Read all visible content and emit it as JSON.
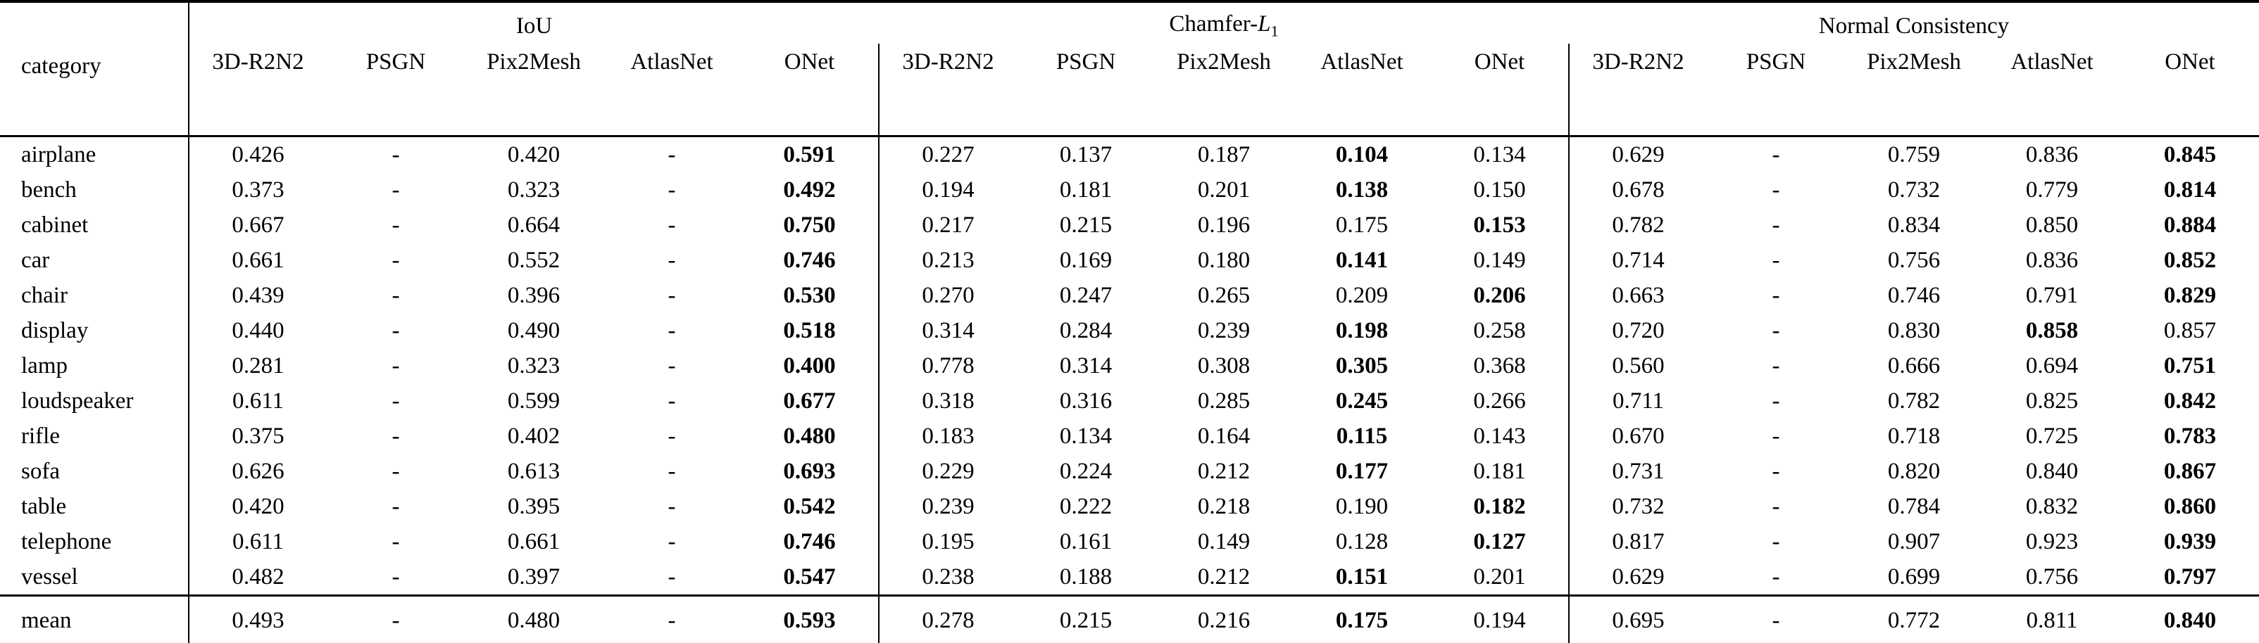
{
  "table": {
    "category_label": "category",
    "text_color": "#000000",
    "background_color": "#ffffff",
    "groups": [
      {
        "name": "IoU",
        "methods": [
          "3D-R2N2",
          "PSGN",
          "Pix2Mesh",
          "AtlasNet",
          "ONet"
        ]
      },
      {
        "name": "Chamfer-",
        "name_italic": "L",
        "name_subscript": "1",
        "methods": [
          "3D-R2N2",
          "PSGN",
          "Pix2Mesh",
          "AtlasNet",
          "ONet"
        ]
      },
      {
        "name": "Normal Consistency",
        "methods": [
          "3D-R2N2",
          "PSGN",
          "Pix2Mesh",
          "AtlasNet",
          "ONet"
        ]
      }
    ],
    "rows": [
      {
        "category": "airplane",
        "values": [
          [
            "0.426",
            "-",
            "0.420",
            "-",
            "0.591"
          ],
          [
            "0.227",
            "0.137",
            "0.187",
            "0.104",
            "0.134"
          ],
          [
            "0.629",
            "-",
            "0.759",
            "0.836",
            "0.845"
          ]
        ],
        "bold": [
          [
            4
          ],
          [
            3
          ],
          [
            4
          ]
        ]
      },
      {
        "category": "bench",
        "values": [
          [
            "0.373",
            "-",
            "0.323",
            "-",
            "0.492"
          ],
          [
            "0.194",
            "0.181",
            "0.201",
            "0.138",
            "0.150"
          ],
          [
            "0.678",
            "-",
            "0.732",
            "0.779",
            "0.814"
          ]
        ],
        "bold": [
          [
            4
          ],
          [
            3
          ],
          [
            4
          ]
        ]
      },
      {
        "category": "cabinet",
        "values": [
          [
            "0.667",
            "-",
            "0.664",
            "-",
            "0.750"
          ],
          [
            "0.217",
            "0.215",
            "0.196",
            "0.175",
            "0.153"
          ],
          [
            "0.782",
            "-",
            "0.834",
            "0.850",
            "0.884"
          ]
        ],
        "bold": [
          [
            4
          ],
          [
            4
          ],
          [
            4
          ]
        ]
      },
      {
        "category": "car",
        "values": [
          [
            "0.661",
            "-",
            "0.552",
            "-",
            "0.746"
          ],
          [
            "0.213",
            "0.169",
            "0.180",
            "0.141",
            "0.149"
          ],
          [
            "0.714",
            "-",
            "0.756",
            "0.836",
            "0.852"
          ]
        ],
        "bold": [
          [
            4
          ],
          [
            3
          ],
          [
            4
          ]
        ]
      },
      {
        "category": "chair",
        "values": [
          [
            "0.439",
            "-",
            "0.396",
            "-",
            "0.530"
          ],
          [
            "0.270",
            "0.247",
            "0.265",
            "0.209",
            "0.206"
          ],
          [
            "0.663",
            "-",
            "0.746",
            "0.791",
            "0.829"
          ]
        ],
        "bold": [
          [
            4
          ],
          [
            4
          ],
          [
            4
          ]
        ]
      },
      {
        "category": "display",
        "values": [
          [
            "0.440",
            "-",
            "0.490",
            "-",
            "0.518"
          ],
          [
            "0.314",
            "0.284",
            "0.239",
            "0.198",
            "0.258"
          ],
          [
            "0.720",
            "-",
            "0.830",
            "0.858",
            "0.857"
          ]
        ],
        "bold": [
          [
            4
          ],
          [
            3
          ],
          [
            3
          ]
        ]
      },
      {
        "category": "lamp",
        "values": [
          [
            "0.281",
            "-",
            "0.323",
            "-",
            "0.400"
          ],
          [
            "0.778",
            "0.314",
            "0.308",
            "0.305",
            "0.368"
          ],
          [
            "0.560",
            "-",
            "0.666",
            "0.694",
            "0.751"
          ]
        ],
        "bold": [
          [
            4
          ],
          [
            3
          ],
          [
            4
          ]
        ]
      },
      {
        "category": "loudspeaker",
        "values": [
          [
            "0.611",
            "-",
            "0.599",
            "-",
            "0.677"
          ],
          [
            "0.318",
            "0.316",
            "0.285",
            "0.245",
            "0.266"
          ],
          [
            "0.711",
            "-",
            "0.782",
            "0.825",
            "0.842"
          ]
        ],
        "bold": [
          [
            4
          ],
          [
            3
          ],
          [
            4
          ]
        ]
      },
      {
        "category": "rifle",
        "values": [
          [
            "0.375",
            "-",
            "0.402",
            "-",
            "0.480"
          ],
          [
            "0.183",
            "0.134",
            "0.164",
            "0.115",
            "0.143"
          ],
          [
            "0.670",
            "-",
            "0.718",
            "0.725",
            "0.783"
          ]
        ],
        "bold": [
          [
            4
          ],
          [
            3
          ],
          [
            4
          ]
        ]
      },
      {
        "category": "sofa",
        "values": [
          [
            "0.626",
            "-",
            "0.613",
            "-",
            "0.693"
          ],
          [
            "0.229",
            "0.224",
            "0.212",
            "0.177",
            "0.181"
          ],
          [
            "0.731",
            "-",
            "0.820",
            "0.840",
            "0.867"
          ]
        ],
        "bold": [
          [
            4
          ],
          [
            3
          ],
          [
            4
          ]
        ]
      },
      {
        "category": "table",
        "values": [
          [
            "0.420",
            "-",
            "0.395",
            "-",
            "0.542"
          ],
          [
            "0.239",
            "0.222",
            "0.218",
            "0.190",
            "0.182"
          ],
          [
            "0.732",
            "-",
            "0.784",
            "0.832",
            "0.860"
          ]
        ],
        "bold": [
          [
            4
          ],
          [
            4
          ],
          [
            4
          ]
        ]
      },
      {
        "category": "telephone",
        "values": [
          [
            "0.611",
            "-",
            "0.661",
            "-",
            "0.746"
          ],
          [
            "0.195",
            "0.161",
            "0.149",
            "0.128",
            "0.127"
          ],
          [
            "0.817",
            "-",
            "0.907",
            "0.923",
            "0.939"
          ]
        ],
        "bold": [
          [
            4
          ],
          [
            4
          ],
          [
            4
          ]
        ]
      },
      {
        "category": "vessel",
        "values": [
          [
            "0.482",
            "-",
            "0.397",
            "-",
            "0.547"
          ],
          [
            "0.238",
            "0.188",
            "0.212",
            "0.151",
            "0.201"
          ],
          [
            "0.629",
            "-",
            "0.699",
            "0.756",
            "0.797"
          ]
        ],
        "bold": [
          [
            4
          ],
          [
            3
          ],
          [
            4
          ]
        ]
      }
    ],
    "mean_row": {
      "category": "mean",
      "values": [
        [
          "0.493",
          "-",
          "0.480",
          "-",
          "0.593"
        ],
        [
          "0.278",
          "0.215",
          "0.216",
          "0.175",
          "0.194"
        ],
        [
          "0.695",
          "-",
          "0.772",
          "0.811",
          "0.840"
        ]
      ],
      "bold": [
        [
          4
        ],
        [
          3
        ],
        [
          4
        ]
      ]
    }
  }
}
